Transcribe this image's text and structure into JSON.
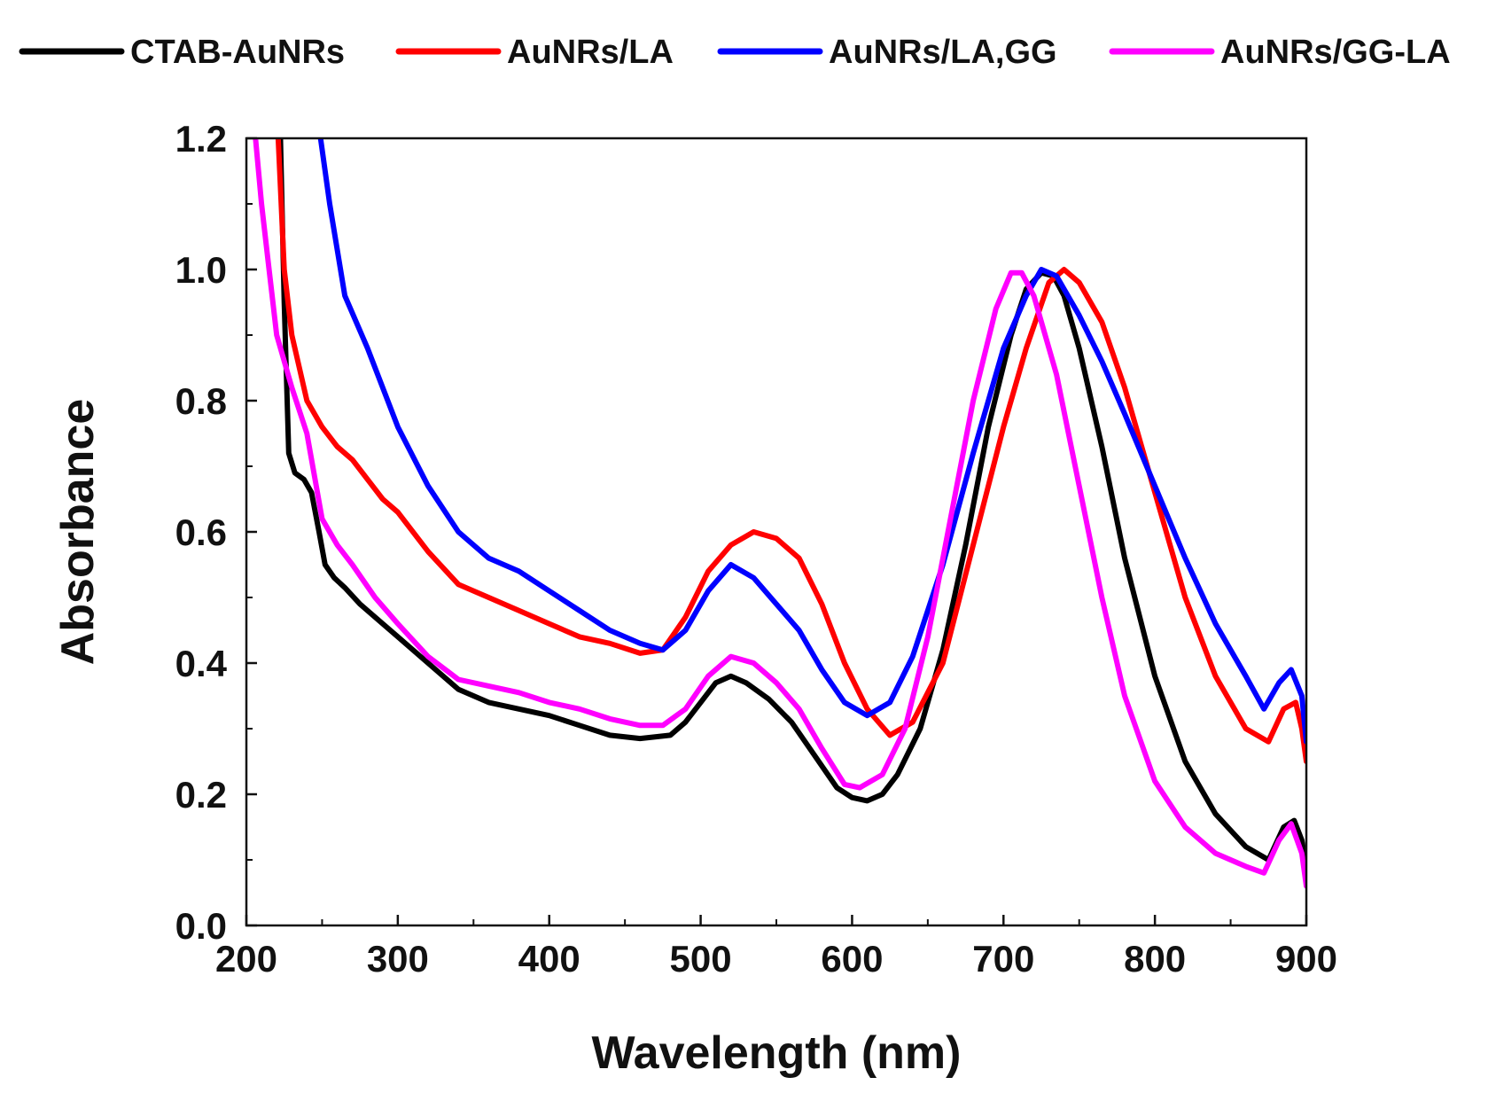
{
  "chart_data": {
    "type": "line",
    "xlabel": "Wavelength (nm)",
    "ylabel": "Absorbance",
    "xlim": [
      200,
      900
    ],
    "ylim": [
      0.0,
      1.2
    ],
    "x_ticks": [
      "200",
      "300",
      "400",
      "500",
      "600",
      "700",
      "800",
      "900"
    ],
    "y_ticks": [
      "0.0",
      "0.2",
      "0.4",
      "0.6",
      "0.8",
      "1.0",
      "1.2"
    ],
    "legend_position": "top",
    "grid": false,
    "series": [
      {
        "name": "CTAB-AuNRs",
        "color": "#000000",
        "points": [
          [
            222,
            1.25
          ],
          [
            225,
            0.95
          ],
          [
            228,
            0.72
          ],
          [
            232,
            0.69
          ],
          [
            238,
            0.68
          ],
          [
            243,
            0.66
          ],
          [
            248,
            0.6
          ],
          [
            252,
            0.55
          ],
          [
            258,
            0.53
          ],
          [
            265,
            0.515
          ],
          [
            275,
            0.49
          ],
          [
            290,
            0.46
          ],
          [
            300,
            0.44
          ],
          [
            320,
            0.4
          ],
          [
            340,
            0.36
          ],
          [
            360,
            0.34
          ],
          [
            380,
            0.33
          ],
          [
            400,
            0.32
          ],
          [
            420,
            0.305
          ],
          [
            440,
            0.29
          ],
          [
            460,
            0.285
          ],
          [
            480,
            0.29
          ],
          [
            490,
            0.31
          ],
          [
            500,
            0.34
          ],
          [
            510,
            0.37
          ],
          [
            520,
            0.38
          ],
          [
            530,
            0.37
          ],
          [
            545,
            0.345
          ],
          [
            560,
            0.31
          ],
          [
            575,
            0.26
          ],
          [
            590,
            0.21
          ],
          [
            600,
            0.195
          ],
          [
            610,
            0.19
          ],
          [
            620,
            0.2
          ],
          [
            630,
            0.23
          ],
          [
            645,
            0.3
          ],
          [
            660,
            0.42
          ],
          [
            675,
            0.58
          ],
          [
            690,
            0.76
          ],
          [
            705,
            0.9
          ],
          [
            715,
            0.97
          ],
          [
            725,
            0.995
          ],
          [
            733,
            0.99
          ],
          [
            740,
            0.96
          ],
          [
            750,
            0.88
          ],
          [
            765,
            0.73
          ],
          [
            780,
            0.56
          ],
          [
            800,
            0.38
          ],
          [
            820,
            0.25
          ],
          [
            840,
            0.17
          ],
          [
            860,
            0.12
          ],
          [
            875,
            0.1
          ],
          [
            885,
            0.15
          ],
          [
            892,
            0.16
          ],
          [
            897,
            0.13
          ],
          [
            900,
            0.09
          ]
        ]
      },
      {
        "name": "AuNRs/LA",
        "color": "#ff0000",
        "points": [
          [
            221,
            1.2
          ],
          [
            225,
            1.0
          ],
          [
            230,
            0.9
          ],
          [
            240,
            0.8
          ],
          [
            250,
            0.76
          ],
          [
            260,
            0.73
          ],
          [
            270,
            0.71
          ],
          [
            280,
            0.68
          ],
          [
            290,
            0.65
          ],
          [
            300,
            0.63
          ],
          [
            320,
            0.57
          ],
          [
            340,
            0.52
          ],
          [
            360,
            0.5
          ],
          [
            380,
            0.48
          ],
          [
            400,
            0.46
          ],
          [
            420,
            0.44
          ],
          [
            440,
            0.43
          ],
          [
            460,
            0.415
          ],
          [
            475,
            0.42
          ],
          [
            490,
            0.47
          ],
          [
            505,
            0.54
          ],
          [
            520,
            0.58
          ],
          [
            535,
            0.6
          ],
          [
            550,
            0.59
          ],
          [
            565,
            0.56
          ],
          [
            580,
            0.49
          ],
          [
            595,
            0.4
          ],
          [
            610,
            0.33
          ],
          [
            625,
            0.29
          ],
          [
            640,
            0.31
          ],
          [
            660,
            0.4
          ],
          [
            680,
            0.58
          ],
          [
            700,
            0.76
          ],
          [
            715,
            0.88
          ],
          [
            730,
            0.98
          ],
          [
            740,
            1.0
          ],
          [
            750,
            0.98
          ],
          [
            765,
            0.92
          ],
          [
            780,
            0.82
          ],
          [
            800,
            0.66
          ],
          [
            820,
            0.5
          ],
          [
            840,
            0.38
          ],
          [
            860,
            0.3
          ],
          [
            875,
            0.28
          ],
          [
            885,
            0.33
          ],
          [
            893,
            0.34
          ],
          [
            897,
            0.3
          ],
          [
            900,
            0.25
          ]
        ]
      },
      {
        "name": "AuNRs/LA,GG",
        "color": "#0000ff",
        "points": [
          [
            249,
            1.2
          ],
          [
            255,
            1.1
          ],
          [
            265,
            0.96
          ],
          [
            280,
            0.88
          ],
          [
            300,
            0.76
          ],
          [
            320,
            0.67
          ],
          [
            340,
            0.6
          ],
          [
            360,
            0.56
          ],
          [
            380,
            0.54
          ],
          [
            400,
            0.51
          ],
          [
            420,
            0.48
          ],
          [
            440,
            0.45
          ],
          [
            460,
            0.43
          ],
          [
            475,
            0.42
          ],
          [
            490,
            0.45
          ],
          [
            505,
            0.51
          ],
          [
            520,
            0.55
          ],
          [
            535,
            0.53
          ],
          [
            550,
            0.49
          ],
          [
            565,
            0.45
          ],
          [
            580,
            0.39
          ],
          [
            595,
            0.34
          ],
          [
            610,
            0.32
          ],
          [
            625,
            0.34
          ],
          [
            640,
            0.41
          ],
          [
            660,
            0.55
          ],
          [
            680,
            0.72
          ],
          [
            700,
            0.88
          ],
          [
            715,
            0.96
          ],
          [
            725,
            1.0
          ],
          [
            735,
            0.99
          ],
          [
            750,
            0.93
          ],
          [
            765,
            0.86
          ],
          [
            780,
            0.78
          ],
          [
            800,
            0.67
          ],
          [
            820,
            0.56
          ],
          [
            840,
            0.46
          ],
          [
            860,
            0.38
          ],
          [
            872,
            0.33
          ],
          [
            882,
            0.37
          ],
          [
            890,
            0.39
          ],
          [
            897,
            0.35
          ],
          [
            900,
            0.28
          ]
        ]
      },
      {
        "name": "AuNRs/GG-LA",
        "color": "#ff00ff",
        "points": [
          [
            206,
            1.2
          ],
          [
            210,
            1.1
          ],
          [
            215,
            1.0
          ],
          [
            220,
            0.9
          ],
          [
            230,
            0.82
          ],
          [
            240,
            0.75
          ],
          [
            250,
            0.62
          ],
          [
            260,
            0.58
          ],
          [
            270,
            0.55
          ],
          [
            285,
            0.5
          ],
          [
            300,
            0.46
          ],
          [
            320,
            0.41
          ],
          [
            340,
            0.375
          ],
          [
            360,
            0.365
          ],
          [
            380,
            0.355
          ],
          [
            400,
            0.34
          ],
          [
            420,
            0.33
          ],
          [
            440,
            0.315
          ],
          [
            460,
            0.305
          ],
          [
            475,
            0.305
          ],
          [
            490,
            0.33
          ],
          [
            505,
            0.38
          ],
          [
            520,
            0.41
          ],
          [
            535,
            0.4
          ],
          [
            550,
            0.37
          ],
          [
            565,
            0.33
          ],
          [
            580,
            0.27
          ],
          [
            595,
            0.215
          ],
          [
            605,
            0.21
          ],
          [
            620,
            0.23
          ],
          [
            635,
            0.3
          ],
          [
            650,
            0.44
          ],
          [
            665,
            0.62
          ],
          [
            680,
            0.8
          ],
          [
            695,
            0.94
          ],
          [
            705,
            0.995
          ],
          [
            712,
            0.995
          ],
          [
            720,
            0.96
          ],
          [
            735,
            0.84
          ],
          [
            750,
            0.67
          ],
          [
            765,
            0.5
          ],
          [
            780,
            0.35
          ],
          [
            800,
            0.22
          ],
          [
            820,
            0.15
          ],
          [
            840,
            0.11
          ],
          [
            860,
            0.09
          ],
          [
            872,
            0.08
          ],
          [
            882,
            0.13
          ],
          [
            890,
            0.155
          ],
          [
            897,
            0.11
          ],
          [
            900,
            0.06
          ]
        ]
      }
    ]
  }
}
